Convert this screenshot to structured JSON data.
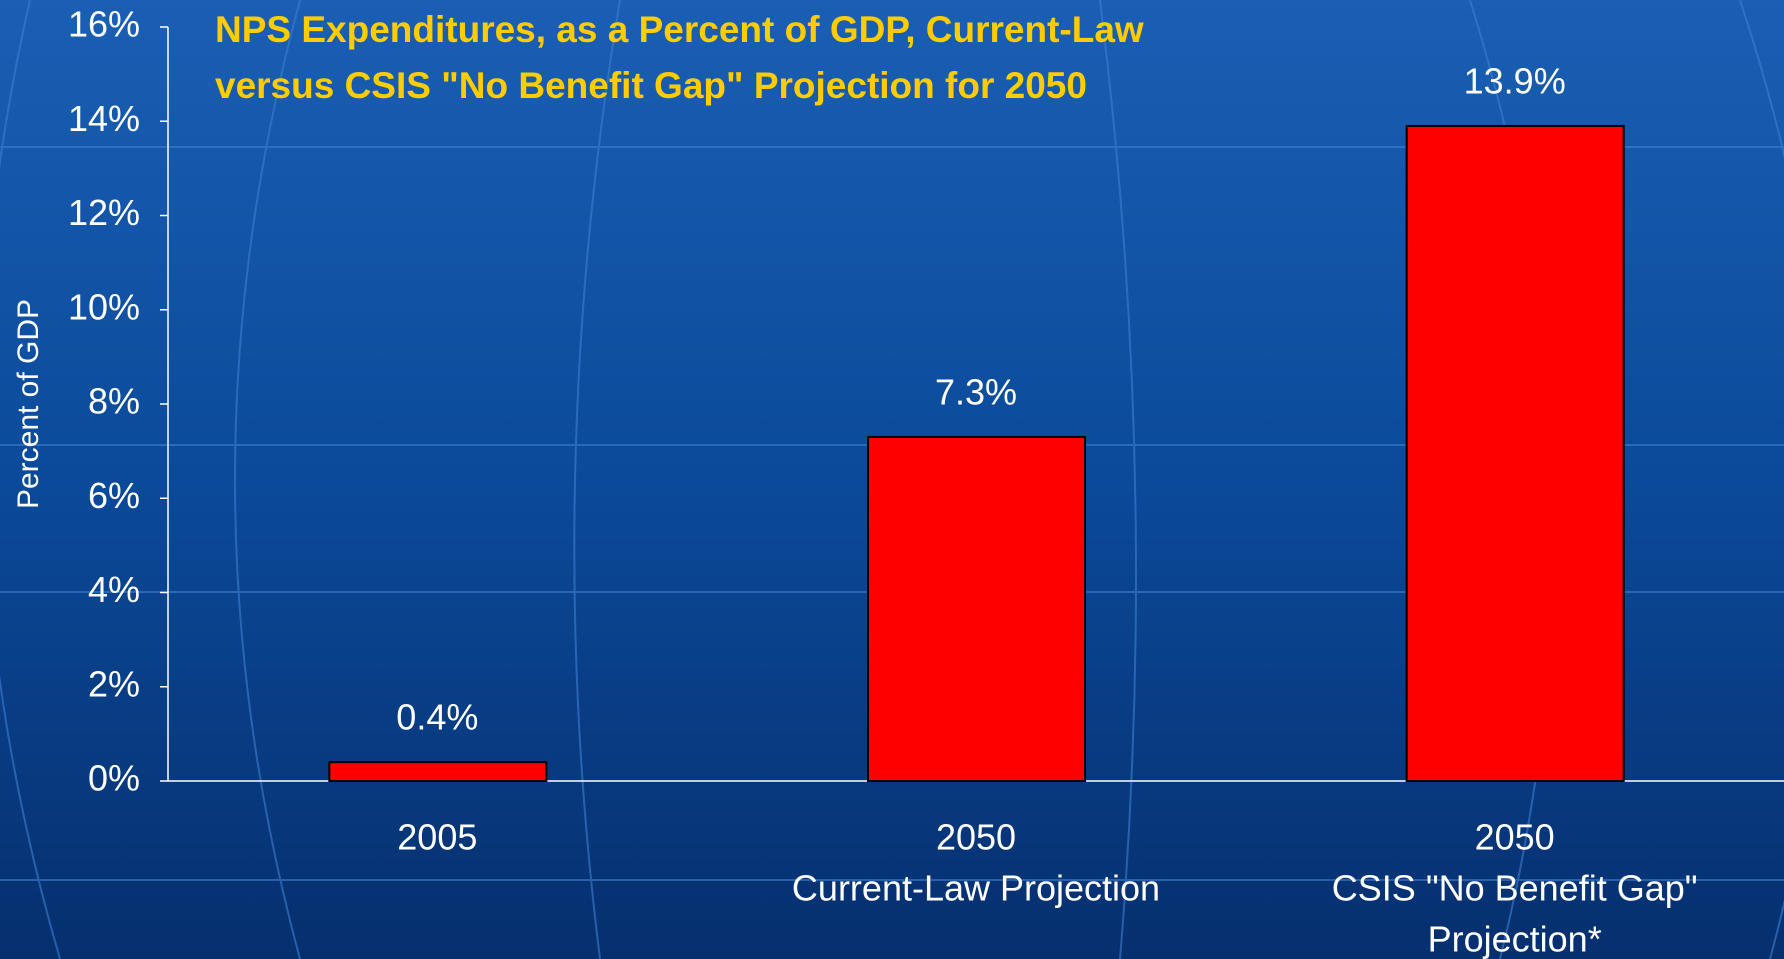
{
  "chart_data": {
    "type": "bar",
    "title": [
      "NPS Expenditures, as a Percent of GDP,  Current-Law",
      "versus CSIS \"No Benefit Gap\" Projection for 2050"
    ],
    "y_label": "Percent of GDP",
    "categories": [
      [
        "2005"
      ],
      [
        "2050",
        "Current-Law Projection"
      ],
      [
        "2050",
        "CSIS \"No Benefit Gap\"",
        "Projection*"
      ]
    ],
    "values": [
      0.4,
      7.3,
      13.9
    ],
    "value_labels": [
      "0.4%",
      "7.3%",
      "13.9%"
    ],
    "color": "#ff0000",
    "ylim": [
      0,
      16
    ],
    "yticks": [
      {
        "value": 0,
        "label": "0%"
      },
      {
        "value": 2,
        "label": "2%"
      },
      {
        "value": 4,
        "label": "4%"
      },
      {
        "value": 6,
        "label": "6%"
      },
      {
        "value": 8,
        "label": "8%"
      },
      {
        "value": 10,
        "label": "10%"
      },
      {
        "value": 12,
        "label": "12%"
      },
      {
        "value": 14,
        "label": "14%"
      },
      {
        "value": 16,
        "label": "16%"
      }
    ],
    "grid": false
  }
}
